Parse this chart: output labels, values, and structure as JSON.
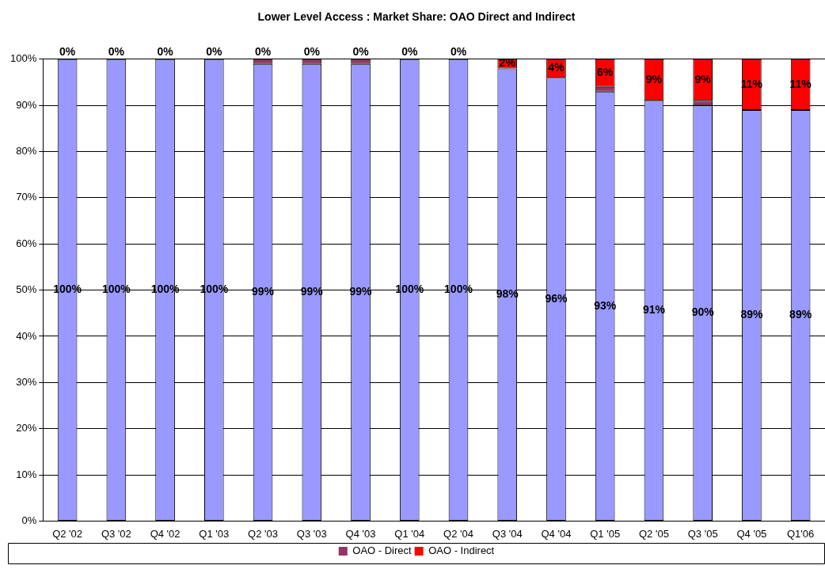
{
  "chart_data": {
    "type": "bar",
    "title": "Lower Level Access : Market Share: OAO Direct and Indirect",
    "categories": [
      "Q2 '02",
      "Q3 '02",
      "Q4 '02",
      "Q1 '03",
      "Q2 '03",
      "Q3 '03",
      "Q4 '03",
      "Q1 '04",
      "Q2 '04",
      "Q3 '04",
      "Q4 '04",
      "Q1 '05",
      "Q2 '05",
      "Q3 '05",
      "Q4 '05",
      "Q1'06"
    ],
    "stacked": true,
    "ylim": [
      0,
      100
    ],
    "yticks": [
      {
        "value": 0,
        "label": "0%"
      },
      {
        "value": 10,
        "label": "10%"
      },
      {
        "value": 20,
        "label": "20%"
      },
      {
        "value": 30,
        "label": "30%"
      },
      {
        "value": 40,
        "label": "40%"
      },
      {
        "value": 50,
        "label": "50%"
      },
      {
        "value": 60,
        "label": "60%"
      },
      {
        "value": 70,
        "label": "70%"
      },
      {
        "value": 80,
        "label": "80%"
      },
      {
        "value": 90,
        "label": "90%"
      },
      {
        "value": 100,
        "label": "100%"
      }
    ],
    "grid": "y",
    "legend": "bottom",
    "series": [
      {
        "color": "#9999ff",
        "values": [
          100,
          100,
          100,
          100,
          99,
          99,
          99,
          100,
          100,
          98,
          96,
          93,
          91,
          90,
          89,
          89
        ],
        "value_labels": [
          "100%",
          "100%",
          "100%",
          "100%",
          "99%",
          "99%",
          "99%",
          "100%",
          "100%",
          "98%",
          "96%",
          "93%",
          "91%",
          "90%",
          "89%",
          "89%"
        ]
      },
      {
        "name": "OAO - Direct",
        "color": "#993366",
        "values": [
          0,
          0,
          0,
          0,
          1,
          1,
          1,
          0,
          0,
          0,
          0,
          1,
          0,
          1,
          0,
          0
        ]
      },
      {
        "name": "OAO - Indirect",
        "color": "#ff0000",
        "values": [
          0,
          0,
          0,
          0,
          0,
          0,
          0,
          0,
          0,
          2,
          4,
          6,
          9,
          9,
          11,
          11
        ],
        "value_labels": [
          "0%",
          "0%",
          "0%",
          "0%",
          "0%",
          "0%",
          "0%",
          "0%",
          "0%",
          "2%",
          "4%",
          "6%",
          "9%",
          "9%",
          "11%",
          "11%"
        ]
      }
    ]
  }
}
